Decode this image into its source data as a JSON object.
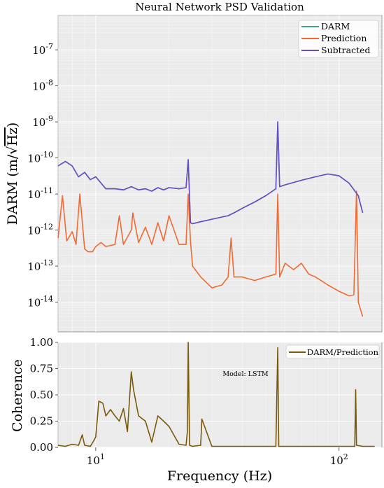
{
  "chart_data": [
    {
      "type": "line",
      "title": "Neural Network PSD Validation",
      "xlabel": "",
      "ylabel": "DARM (m/√Hz)",
      "xscale": "log",
      "yscale": "log",
      "xlim": [
        7,
        150
      ],
      "ylim": [
        1.5e-15,
        9e-07
      ],
      "ytick_labels": [
        "10^-14",
        "10^-13",
        "10^-12",
        "10^-11",
        "10^-10",
        "10^-9",
        "10^-8",
        "10^-7"
      ],
      "grid": true,
      "legend_position": "top-right",
      "series": [
        {
          "name": "DARM",
          "color": "#3aaa80",
          "x": [
            7,
            7.5,
            8,
            8.5,
            9,
            9.5,
            10,
            11,
            12,
            13,
            14,
            15,
            16,
            17,
            18,
            19,
            20,
            22,
            23.5,
            24,
            24.5,
            25,
            27,
            30,
            35,
            37,
            40,
            45,
            50,
            55,
            56,
            57,
            60,
            70,
            80,
            90,
            100,
            110,
            120,
            125
          ],
          "y": [
            6e-11,
            8e-11,
            6e-11,
            3e-11,
            4e-11,
            2.5e-11,
            3e-11,
            1.4e-11,
            1.4e-11,
            1.3e-11,
            1.6e-11,
            1.3e-11,
            1.4e-11,
            1.2e-11,
            1.5e-11,
            1.3e-11,
            1.5e-11,
            1.4e-11,
            1.5e-11,
            9e-11,
            1.6e-12,
            1.5e-12,
            1.7e-12,
            2e-12,
            2.5e-12,
            3e-12,
            4e-12,
            6e-12,
            9e-12,
            1.4e-11,
            1e-09,
            1.6e-11,
            1.8e-11,
            2.4e-11,
            3e-11,
            3.6e-11,
            3.2e-11,
            2e-11,
            9e-12,
            3e-12
          ]
        },
        {
          "name": "Prediction",
          "color": "#f06a32",
          "x": [
            7,
            7.3,
            7.6,
            8,
            8.3,
            8.6,
            9,
            9.3,
            9.7,
            10,
            10.5,
            11,
            12,
            12.5,
            13,
            14,
            14.2,
            15,
            16,
            17,
            18,
            19,
            20,
            22,
            23.5,
            24,
            24.5,
            25,
            27,
            30,
            33,
            35,
            36,
            37,
            40,
            45,
            50,
            55,
            56,
            57,
            60,
            65,
            70,
            75,
            80,
            90,
            100,
            110,
            115,
            118,
            120,
            125
          ],
          "y": [
            6e-13,
            9e-12,
            5e-13,
            9e-13,
            4e-13,
            1e-11,
            3e-13,
            2.5e-13,
            2.5e-13,
            3.5e-13,
            4.5e-13,
            3.5e-13,
            4e-13,
            2.5e-12,
            4e-13,
            1e-12,
            3e-12,
            4.5e-13,
            1.2e-12,
            4e-13,
            1.6e-12,
            5e-13,
            2.5e-12,
            4e-13,
            4e-13,
            1e-11,
            5e-13,
            1e-13,
            5e-14,
            2.5e-14,
            3e-14,
            5e-14,
            6e-13,
            5e-14,
            5e-14,
            4e-14,
            5e-14,
            6e-14,
            1e-11,
            5e-14,
            1.2e-13,
            8e-14,
            1.2e-13,
            6e-14,
            5e-14,
            3e-14,
            2e-14,
            1.5e-14,
            1.6e-14,
            1.2e-11,
            1e-14,
            4e-15
          ]
        },
        {
          "name": "Subtracted",
          "color": "#6a4bc8",
          "x": [
            7,
            7.5,
            8,
            8.5,
            9,
            9.5,
            10,
            11,
            12,
            13,
            14,
            15,
            16,
            17,
            18,
            19,
            20,
            22,
            23.5,
            24,
            24.5,
            25,
            27,
            30,
            35,
            37,
            40,
            45,
            50,
            55,
            56,
            57,
            60,
            70,
            80,
            90,
            100,
            110,
            120,
            125
          ],
          "y": [
            6e-11,
            8e-11,
            6e-11,
            3e-11,
            4e-11,
            2.5e-11,
            3e-11,
            1.4e-11,
            1.4e-11,
            1.3e-11,
            1.6e-11,
            1.3e-11,
            1.4e-11,
            1.2e-11,
            1.5e-11,
            1.3e-11,
            1.5e-11,
            1.4e-11,
            1.5e-11,
            9e-11,
            1.6e-12,
            1.5e-12,
            1.7e-12,
            2e-12,
            2.5e-12,
            3e-12,
            4e-12,
            6e-12,
            9e-12,
            1.4e-11,
            1e-09,
            1.6e-11,
            1.8e-11,
            2.4e-11,
            3e-11,
            3.6e-11,
            3.2e-11,
            2e-11,
            9e-12,
            3e-12
          ]
        }
      ]
    },
    {
      "type": "line",
      "title": "",
      "xlabel": "Frequency (Hz)",
      "ylabel": "Coherence",
      "xscale": "log",
      "xlim": [
        7,
        150
      ],
      "ylim": [
        0,
        1
      ],
      "xtick_labels": [
        "10^1",
        "10^2"
      ],
      "ytick_labels": [
        "0.00",
        "0.25",
        "0.50",
        "0.75",
        "1.00"
      ],
      "grid": true,
      "legend_position": "top-right",
      "annotation": {
        "text": "Model: LSTM",
        "color": "#6a2be8"
      },
      "series": [
        {
          "name": "DARM/Prediction",
          "color": "#7a5a0a",
          "x": [
            7,
            7.5,
            8,
            8.5,
            8.8,
            9,
            9.5,
            9.8,
            10,
            10.3,
            10.7,
            11,
            11.5,
            12,
            12.5,
            13,
            13.5,
            14,
            14.3,
            15,
            16,
            17,
            18,
            19,
            20,
            22,
            23.5,
            23.8,
            24,
            24.3,
            25,
            27,
            27.3,
            30,
            40,
            55,
            56,
            56.5,
            60,
            80,
            100,
            116,
            117,
            118,
            125,
            140
          ],
          "y": [
            0.02,
            0.01,
            0.03,
            0.02,
            0.12,
            0.02,
            0.01,
            0.06,
            0.1,
            0.44,
            0.42,
            0.3,
            0.36,
            0.3,
            0.25,
            0.37,
            0.15,
            0.72,
            0.55,
            0.3,
            0.25,
            0.05,
            0.3,
            0.25,
            0.2,
            0.03,
            0.02,
            0.15,
            1.0,
            0.02,
            0.01,
            0.02,
            0.27,
            0.01,
            0.01,
            0.01,
            0.95,
            0.01,
            0.01,
            0.01,
            0.01,
            0.01,
            0.55,
            0.02,
            0.01,
            0.01
          ]
        }
      ]
    }
  ]
}
